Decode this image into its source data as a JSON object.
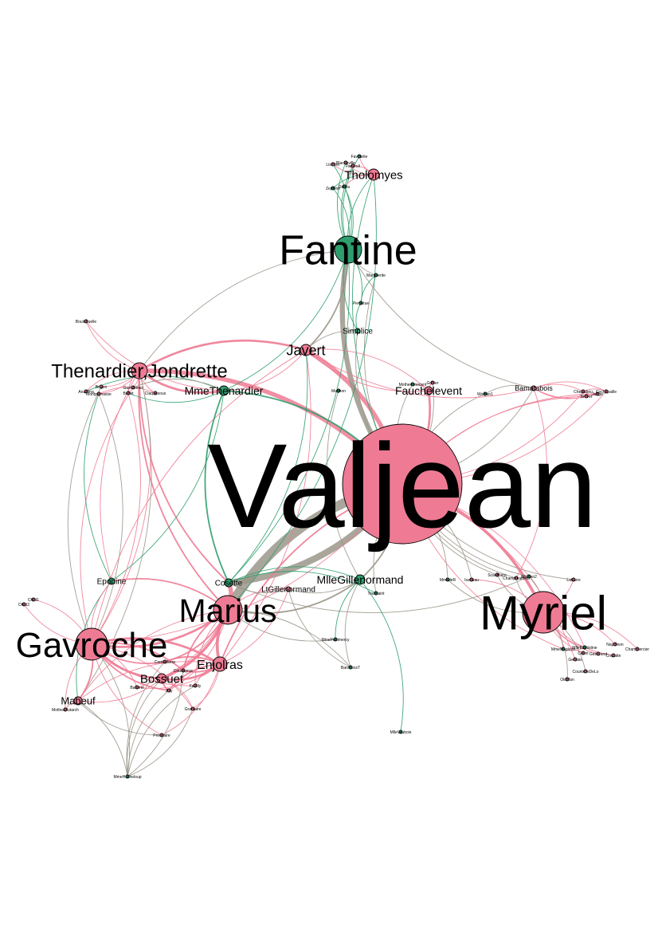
{
  "colors": {
    "pink": "#ee7b93",
    "green": "#2f9e6e",
    "gray": "#9b968a",
    "label": "#000000"
  },
  "nodes": [
    {
      "id": "valjean",
      "label": "Valjean",
      "group": "pink"
    },
    {
      "id": "myriel",
      "label": "Myriel",
      "group": "pink"
    },
    {
      "id": "fantine",
      "label": "Fantine",
      "group": "green"
    },
    {
      "id": "gavroche",
      "label": "Gavroche",
      "group": "pink"
    },
    {
      "id": "marius",
      "label": "Marius",
      "group": "pink"
    },
    {
      "id": "thenardier",
      "label": "Thenardier,Jondrette",
      "group": "pink"
    },
    {
      "id": "mmethenardier",
      "label": "MmeThenardier",
      "group": "green"
    },
    {
      "id": "javert",
      "label": "Javert",
      "group": "pink"
    },
    {
      "id": "tholomyes",
      "label": "Tholomyes",
      "group": "pink"
    },
    {
      "id": "fauchelevent",
      "label": "Fauchelevent",
      "group": "pink"
    },
    {
      "id": "mllegillenormand",
      "label": "MlleGillenormand",
      "group": "green"
    },
    {
      "id": "cosette",
      "label": "Cosette",
      "group": "green"
    },
    {
      "id": "enjolras",
      "label": "Enjolras",
      "group": "pink"
    },
    {
      "id": "bossuet",
      "label": "Bossuet",
      "group": "pink"
    },
    {
      "id": "mabeuf",
      "label": "Mabeuf",
      "group": "pink"
    },
    {
      "id": "ltgillenormand",
      "label": "LtGillenormand",
      "group": "pink"
    },
    {
      "id": "eponine",
      "label": "Eponine",
      "group": "green"
    },
    {
      "id": "simplice",
      "label": "Simplice",
      "group": "green"
    },
    {
      "id": "bamatabois",
      "label": "Bamatabois",
      "group": "pink"
    },
    {
      "id": "combeferre",
      "label": "Combeferre",
      "group": "pink"
    },
    {
      "id": "courfeyrac",
      "label": "Courfeyrac",
      "group": "pink"
    },
    {
      "id": "mmehucheloup",
      "label": "MmeHucheloup",
      "group": "green"
    },
    {
      "id": "montparnasse",
      "label": "Montparnasse",
      "group": "pink"
    },
    {
      "id": "claquesous",
      "label": "Claquesous",
      "group": "pink"
    },
    {
      "id": "gueulemer",
      "label": "Gueulemer",
      "group": "pink"
    },
    {
      "id": "babet",
      "label": "Babet",
      "group": "pink"
    },
    {
      "id": "brujon",
      "label": "Brujon",
      "group": "pink"
    },
    {
      "id": "anzelma",
      "label": "Anzelma",
      "group": "pink"
    },
    {
      "id": "boulatruelle",
      "label": "Boulatruelle",
      "group": "pink"
    },
    {
      "id": "marguerite",
      "label": "Marguerite",
      "group": "green"
    },
    {
      "id": "perpetue",
      "label": "Perpetue",
      "group": "green"
    },
    {
      "id": "mmemagloire",
      "label": "MmeMagloire",
      "group": "green"
    },
    {
      "id": "mllebaptistine",
      "label": "MlleBaptistine",
      "group": "green"
    },
    {
      "id": "gervais",
      "label": "Gervais",
      "group": "pink"
    },
    {
      "id": "woman1",
      "label": "Woman1",
      "group": "green"
    },
    {
      "id": "mmedeR",
      "label": "MmedeR",
      "group": "green"
    },
    {
      "id": "isabeau",
      "label": "Isabeau",
      "group": "pink"
    },
    {
      "id": "labarre",
      "label": "Labarre",
      "group": "pink"
    },
    {
      "id": "cravatte",
      "label": "Cravatte",
      "group": "pink"
    },
    {
      "id": "napoleon",
      "label": "Napoleon",
      "group": "pink"
    },
    {
      "id": "champtercier",
      "label": "Champtercier",
      "group": "pink"
    },
    {
      "id": "geborand",
      "label": "Geborand",
      "group": "pink"
    },
    {
      "id": "oldman",
      "label": "OldMan",
      "group": "pink"
    },
    {
      "id": "count",
      "label": "Count",
      "group": "pink"
    },
    {
      "id": "countessdelo",
      "label": "CountessDeLo",
      "group": "pink"
    },
    {
      "id": "scaufflaire",
      "label": "Scaufflaire",
      "group": "pink"
    },
    {
      "id": "chenildieu",
      "label": "Chenildieu",
      "group": "pink"
    },
    {
      "id": "judge",
      "label": "Judge",
      "group": "pink"
    },
    {
      "id": "cochepaille",
      "label": "Cochepaille",
      "group": "pink"
    },
    {
      "id": "brevet",
      "label": "Brevet",
      "group": "pink"
    },
    {
      "id": "champmathieu",
      "label": "Champmathieu",
      "group": "pink"
    },
    {
      "id": "gribier",
      "label": "Gribier",
      "group": "pink"
    },
    {
      "id": "mothersimplice",
      "label": "MotherInnocent",
      "group": "green"
    },
    {
      "id": "toussaint",
      "label": "Toussaint",
      "group": "green"
    },
    {
      "id": "woman2",
      "label": "Woman2",
      "group": "green"
    },
    {
      "id": "mmepontmercy",
      "label": "MmePontmercy",
      "group": "green"
    },
    {
      "id": "mllevaubois",
      "label": "MlleVaubois",
      "group": "green"
    },
    {
      "id": "baronessT",
      "label": "BaronessT",
      "group": "green"
    },
    {
      "id": "magnon",
      "label": "Magnon",
      "group": "green"
    },
    {
      "id": "motherplutarch",
      "label": "MotherPlutarch",
      "group": "pink"
    },
    {
      "id": "joly",
      "label": "Joly",
      "group": "pink"
    },
    {
      "id": "grantaire",
      "label": "Grantaire",
      "group": "pink"
    },
    {
      "id": "feuilly",
      "label": "Feuilly",
      "group": "pink"
    },
    {
      "id": "bahorel",
      "label": "Bahorel",
      "group": "pink"
    },
    {
      "id": "prouvaire",
      "label": "Prouvaire",
      "group": "pink"
    },
    {
      "id": "child1",
      "label": "Child1",
      "group": "pink"
    },
    {
      "id": "child2",
      "label": "Child2",
      "group": "pink"
    },
    {
      "id": "zephine",
      "label": "Zephine",
      "group": "green"
    },
    {
      "id": "favourite",
      "label": "Favourite",
      "group": "green"
    },
    {
      "id": "dahlia",
      "label": "Dahlia",
      "group": "green"
    },
    {
      "id": "fameuil",
      "label": "Fameuil",
      "group": "pink"
    },
    {
      "id": "listolier",
      "label": "Listolier",
      "group": "pink"
    },
    {
      "id": "blacheville",
      "label": "Blacheville",
      "group": "pink"
    }
  ]
}
